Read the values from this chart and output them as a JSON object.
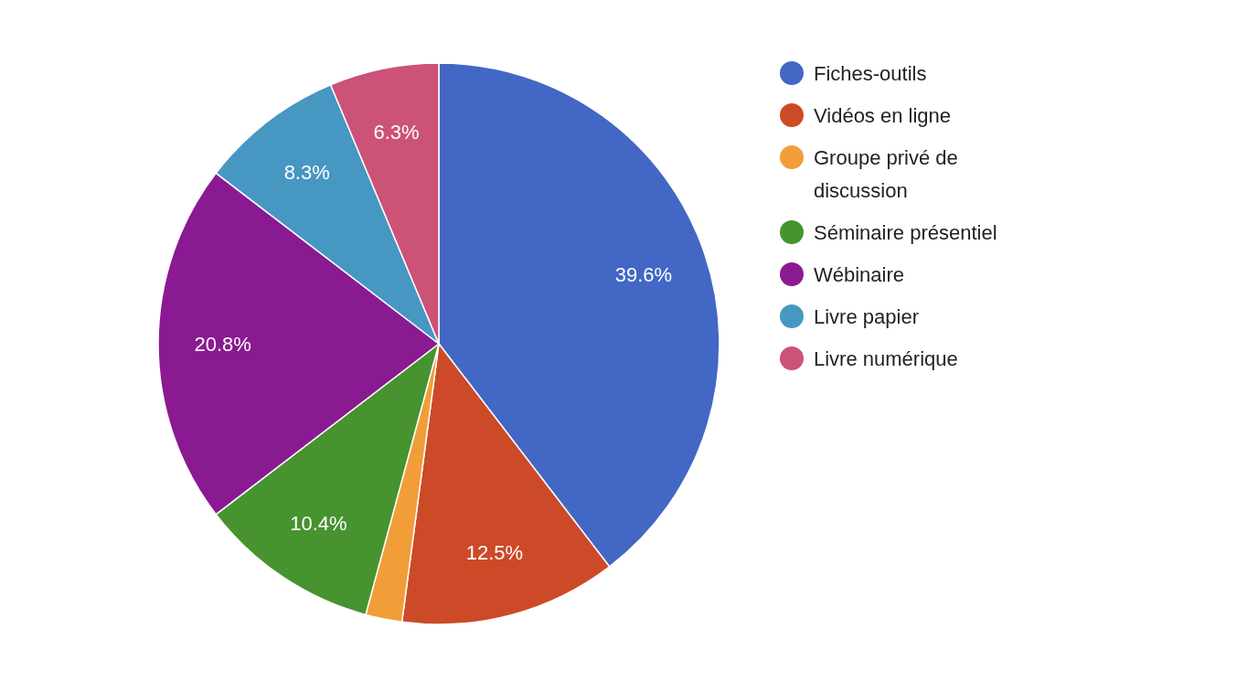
{
  "chart_data": {
    "type": "pie",
    "categories": [
      "Fiches-outils",
      "Vidéos en ligne",
      "Groupe privé de discussion",
      "Séminaire présentiel",
      "Wébinaire",
      "Livre papier",
      "Livre numérique"
    ],
    "values": [
      39.6,
      12.5,
      2.1,
      10.4,
      20.8,
      8.3,
      6.3
    ],
    "value_labels": [
      "39.6%",
      "12.5%",
      null,
      "10.4%",
      "20.8%",
      "8.3%",
      "6.3%"
    ],
    "colors": [
      "#4267c5",
      "#cc4a27",
      "#f19e38",
      "#46932f",
      "#8a1a92",
      "#4797c3",
      "#cc5278"
    ],
    "legend": "right"
  }
}
